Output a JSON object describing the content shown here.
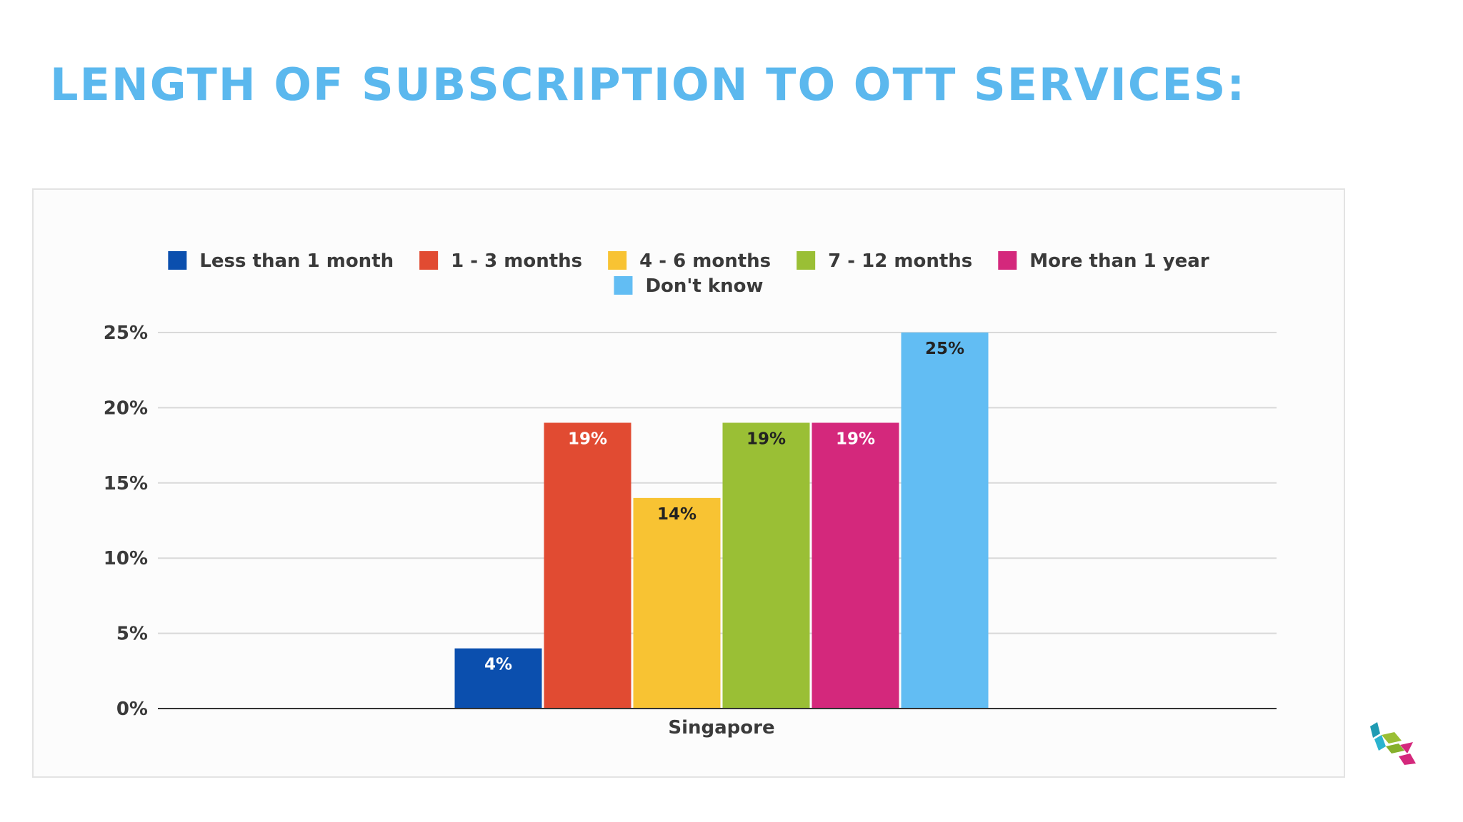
{
  "title": "LENGTH OF SUBSCRIPTION TO OTT SERVICES:",
  "chart_data": {
    "type": "bar",
    "categories": [
      "Singapore"
    ],
    "series": [
      {
        "name": "Less than 1 month",
        "values": [
          4
        ],
        "label": "4%",
        "color": "#0b4fae",
        "label_color": "#ffffff"
      },
      {
        "name": "1 - 3 months",
        "values": [
          19
        ],
        "label": "19%",
        "color": "#e14b32",
        "label_color": "#ffffff"
      },
      {
        "name": "4 - 6 months",
        "values": [
          14
        ],
        "label": "14%",
        "color": "#f8c333",
        "label_color": "#222222"
      },
      {
        "name": "7 - 12 months",
        "values": [
          19
        ],
        "label": "19%",
        "color": "#9abf35",
        "label_color": "#222222"
      },
      {
        "name": "More than 1 year",
        "values": [
          19
        ],
        "label": "19%",
        "color": "#d4287c",
        "label_color": "#ffffff"
      },
      {
        "name": "Don't know",
        "values": [
          25
        ],
        "label": "25%",
        "color": "#62bdf3",
        "label_color": "#222222"
      }
    ],
    "ylim": [
      0,
      25
    ],
    "yticks": [
      "0%",
      "5%",
      "10%",
      "15%",
      "20%",
      "25%"
    ],
    "ytick_values": [
      0,
      5,
      10,
      15,
      20,
      25
    ],
    "grid": true,
    "legend_position": "top"
  }
}
